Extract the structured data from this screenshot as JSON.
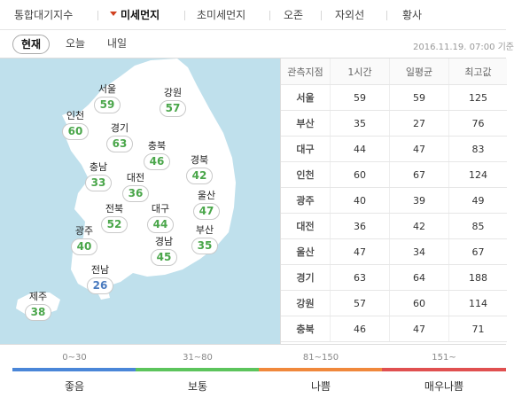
{
  "top_nav": {
    "tabs": [
      {
        "label": "통합대기지수",
        "active": false
      },
      {
        "label": "미세먼지",
        "active": true
      },
      {
        "label": "초미세먼지",
        "active": false
      },
      {
        "label": "오존",
        "active": false
      },
      {
        "label": "자외선",
        "active": false
      },
      {
        "label": "황사",
        "active": false
      }
    ]
  },
  "sub_tabs": [
    {
      "label": "현재",
      "active": true
    },
    {
      "label": "오늘",
      "active": false
    },
    {
      "label": "내일",
      "active": false
    }
  ],
  "timestamp": "2016.11.19. 07:00 기준",
  "map_regions": [
    {
      "name": "서울",
      "value": "59"
    },
    {
      "name": "강원",
      "value": "57"
    },
    {
      "name": "인천",
      "value": "60"
    },
    {
      "name": "경기",
      "value": "63"
    },
    {
      "name": "충북",
      "value": "46"
    },
    {
      "name": "충남",
      "value": "33"
    },
    {
      "name": "대전",
      "value": "36"
    },
    {
      "name": "경북",
      "value": "42"
    },
    {
      "name": "전북",
      "value": "52"
    },
    {
      "name": "대구",
      "value": "44"
    },
    {
      "name": "울산",
      "value": "47"
    },
    {
      "name": "광주",
      "value": "40"
    },
    {
      "name": "부산",
      "value": "35"
    },
    {
      "name": "경남",
      "value": "45"
    },
    {
      "name": "전남",
      "value": "26"
    },
    {
      "name": "제주",
      "value": "38"
    }
  ],
  "table": {
    "headers": [
      "관측지점",
      "1시간",
      "일평균",
      "최고값"
    ],
    "rows": [
      [
        "서울",
        "59",
        "59",
        "125"
      ],
      [
        "부산",
        "35",
        "27",
        "76"
      ],
      [
        "대구",
        "44",
        "47",
        "83"
      ],
      [
        "인천",
        "60",
        "67",
        "124"
      ],
      [
        "광주",
        "40",
        "39",
        "49"
      ],
      [
        "대전",
        "36",
        "42",
        "85"
      ],
      [
        "울산",
        "47",
        "34",
        "67"
      ],
      [
        "경기",
        "63",
        "64",
        "188"
      ],
      [
        "강원",
        "57",
        "60",
        "114"
      ],
      [
        "충북",
        "46",
        "47",
        "71"
      ]
    ]
  },
  "legend": [
    {
      "range": "0~30",
      "label": "좋음",
      "color": "#4a86d8"
    },
    {
      "range": "31~80",
      "label": "보통",
      "color": "#5cc45c"
    },
    {
      "range": "81~150",
      "label": "나쁨",
      "color": "#f0883c"
    },
    {
      "range": "151~",
      "label": "매우나쁨",
      "color": "#e05050"
    }
  ],
  "colors": {
    "good_value_text": "#4a7bbf",
    "normal_value_text": "#4aa64a",
    "map_sea": "#bfe0ec",
    "map_land": "#ffffff"
  }
}
